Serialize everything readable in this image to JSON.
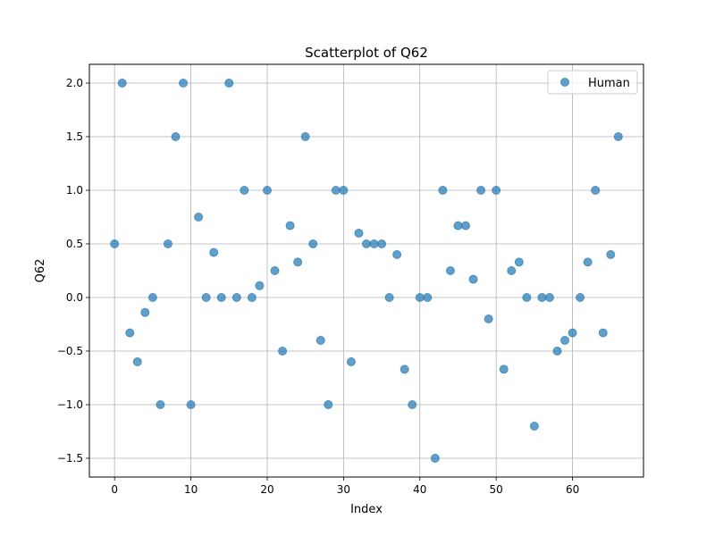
{
  "chart_data": {
    "type": "scatter",
    "title": "Scatterplot of Q62",
    "xlabel": "Index",
    "ylabel": "Q62",
    "xlim": [
      -3.3,
      69.3
    ],
    "ylim": [
      -1.675,
      2.175
    ],
    "xticks": [
      0,
      10,
      20,
      30,
      40,
      50,
      60
    ],
    "xtick_labels": [
      "0",
      "10",
      "20",
      "30",
      "40",
      "50",
      "60"
    ],
    "yticks": [
      -1.5,
      -1.0,
      -0.5,
      0.0,
      0.5,
      1.0,
      1.5,
      2.0
    ],
    "ytick_labels": [
      "−1.5",
      "−1.0",
      "−0.5",
      "0.0",
      "0.5",
      "1.0",
      "1.5",
      "2.0"
    ],
    "grid": true,
    "legend_position": "top-right",
    "series": [
      {
        "name": "Human",
        "color": "#1f77b4",
        "x": [
          0,
          1,
          2,
          3,
          4,
          5,
          6,
          7,
          8,
          9,
          10,
          11,
          12,
          13,
          14,
          15,
          16,
          17,
          18,
          19,
          20,
          21,
          22,
          23,
          24,
          25,
          26,
          27,
          28,
          29,
          30,
          31,
          32,
          33,
          34,
          35,
          36,
          37,
          38,
          39,
          40,
          41,
          42,
          43,
          44,
          45,
          46,
          47,
          48,
          49,
          50,
          51,
          52,
          53,
          54,
          55,
          56,
          57,
          58,
          59,
          60,
          61,
          62,
          63,
          64,
          65,
          66
        ],
        "y": [
          0.5,
          2.0,
          -0.33,
          -0.6,
          -0.14,
          0.0,
          -1.0,
          0.5,
          1.5,
          2.0,
          -1.0,
          0.75,
          0.0,
          0.42,
          0.0,
          2.0,
          0.0,
          1.0,
          0.0,
          0.11,
          1.0,
          0.25,
          -0.5,
          0.67,
          0.33,
          1.5,
          0.5,
          -0.4,
          -1.0,
          1.0,
          1.0,
          -0.6,
          0.6,
          0.5,
          0.5,
          0.5,
          0.0,
          0.4,
          -0.67,
          -1.0,
          0.0,
          0.0,
          -1.5,
          1.0,
          0.25,
          0.67,
          0.67,
          0.17,
          1.0,
          -0.2,
          1.0,
          -0.67,
          0.25,
          0.33,
          0.0,
          -1.2,
          0.0,
          0.0,
          -0.5,
          -0.4,
          -0.33,
          0.0,
          0.33,
          1.0,
          -0.33,
          0.4,
          1.5
        ]
      }
    ]
  }
}
